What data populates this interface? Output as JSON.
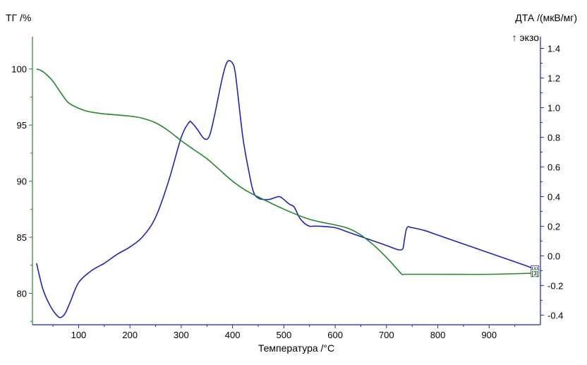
{
  "chart_data": {
    "type": "line",
    "xlabel": "Температура /°C",
    "ylabel_left": "ТГ /%",
    "ylabel_right": "ДТА /(мкВ/мг)",
    "annotation": "↑ экзо",
    "xlim": [
      10,
      1000
    ],
    "ylim_left": [
      77.2,
      102.5
    ],
    "ylim_right": [
      -0.465,
      1.45
    ],
    "x_ticks": [
      100,
      200,
      300,
      400,
      500,
      600,
      700,
      800,
      900
    ],
    "y_left_ticks": [
      80,
      85,
      90,
      95,
      100
    ],
    "y_right_ticks": [
      -0.4,
      -0.2,
      0.0,
      0.2,
      0.4,
      0.6,
      0.8,
      1.0,
      1.2,
      1.4
    ],
    "y_right_tick_labels": [
      "-0.4",
      "-0.2",
      "0.0",
      "0.2",
      "0.4",
      "0.6",
      "0.8",
      "1.0",
      "1.2",
      "1.4"
    ],
    "grid": false,
    "series": [
      {
        "name": "[1]",
        "axis": "right",
        "color": "#2222bb",
        "x": [
          18,
          30,
          45,
          60,
          68,
          75,
          85,
          100,
          125,
          150,
          175,
          200,
          225,
          250,
          275,
          300,
          315,
          320,
          330,
          345,
          355,
          365,
          380,
          390,
          400,
          405,
          410,
          420,
          430,
          440,
          450,
          470,
          490,
          500,
          510,
          520,
          530,
          540,
          550,
          555,
          570,
          600,
          625,
          650,
          675,
          700,
          715,
          725,
          732,
          735,
          740,
          750,
          775,
          800,
          850,
          900,
          950,
          990
        ],
        "y": [
          -0.05,
          -0.22,
          -0.34,
          -0.41,
          -0.41,
          -0.38,
          -0.3,
          -0.18,
          -0.1,
          -0.05,
          0.01,
          0.06,
          0.13,
          0.26,
          0.5,
          0.8,
          0.9,
          0.9,
          0.86,
          0.79,
          0.81,
          0.95,
          1.2,
          1.31,
          1.3,
          1.24,
          1.1,
          0.8,
          0.6,
          0.44,
          0.39,
          0.38,
          0.4,
          0.38,
          0.35,
          0.33,
          0.26,
          0.22,
          0.2,
          0.2,
          0.2,
          0.19,
          0.16,
          0.13,
          0.1,
          0.07,
          0.05,
          0.04,
          0.05,
          0.11,
          0.19,
          0.19,
          0.17,
          0.14,
          0.08,
          0.02,
          -0.04,
          -0.09
        ]
      },
      {
        "name": "[3]",
        "axis": "left",
        "color": "#22882a",
        "x": [
          18,
          25,
          35,
          50,
          65,
          80,
          100,
          120,
          150,
          200,
          225,
          250,
          275,
          300,
          325,
          350,
          375,
          400,
          425,
          450,
          500,
          550,
          600,
          625,
          650,
          675,
          700,
          720,
          730,
          735,
          750,
          800,
          900,
          990
        ],
        "y": [
          100.0,
          99.9,
          99.6,
          98.9,
          97.9,
          97.0,
          96.5,
          96.2,
          96.0,
          95.8,
          95.6,
          95.2,
          94.5,
          93.6,
          92.8,
          92.0,
          91.0,
          90.0,
          89.2,
          88.6,
          87.5,
          86.6,
          86.1,
          85.8,
          85.2,
          84.3,
          83.2,
          82.2,
          81.7,
          81.7,
          81.7,
          81.7,
          81.7,
          81.8
        ]
      }
    ]
  }
}
